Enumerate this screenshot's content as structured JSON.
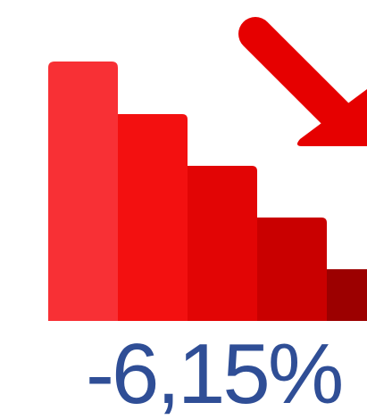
{
  "percentage_change": {
    "text": "-6,15%",
    "color": "#2f4e96"
  },
  "icon": {
    "name": "decreasing-bar-chart-icon",
    "arrow_name": "down-right-arrow-icon",
    "bar_colors": [
      "#f83035",
      "#f31010",
      "#e20505",
      "#c90000",
      "#9c0000"
    ],
    "arrow_color": "#e60000"
  }
}
